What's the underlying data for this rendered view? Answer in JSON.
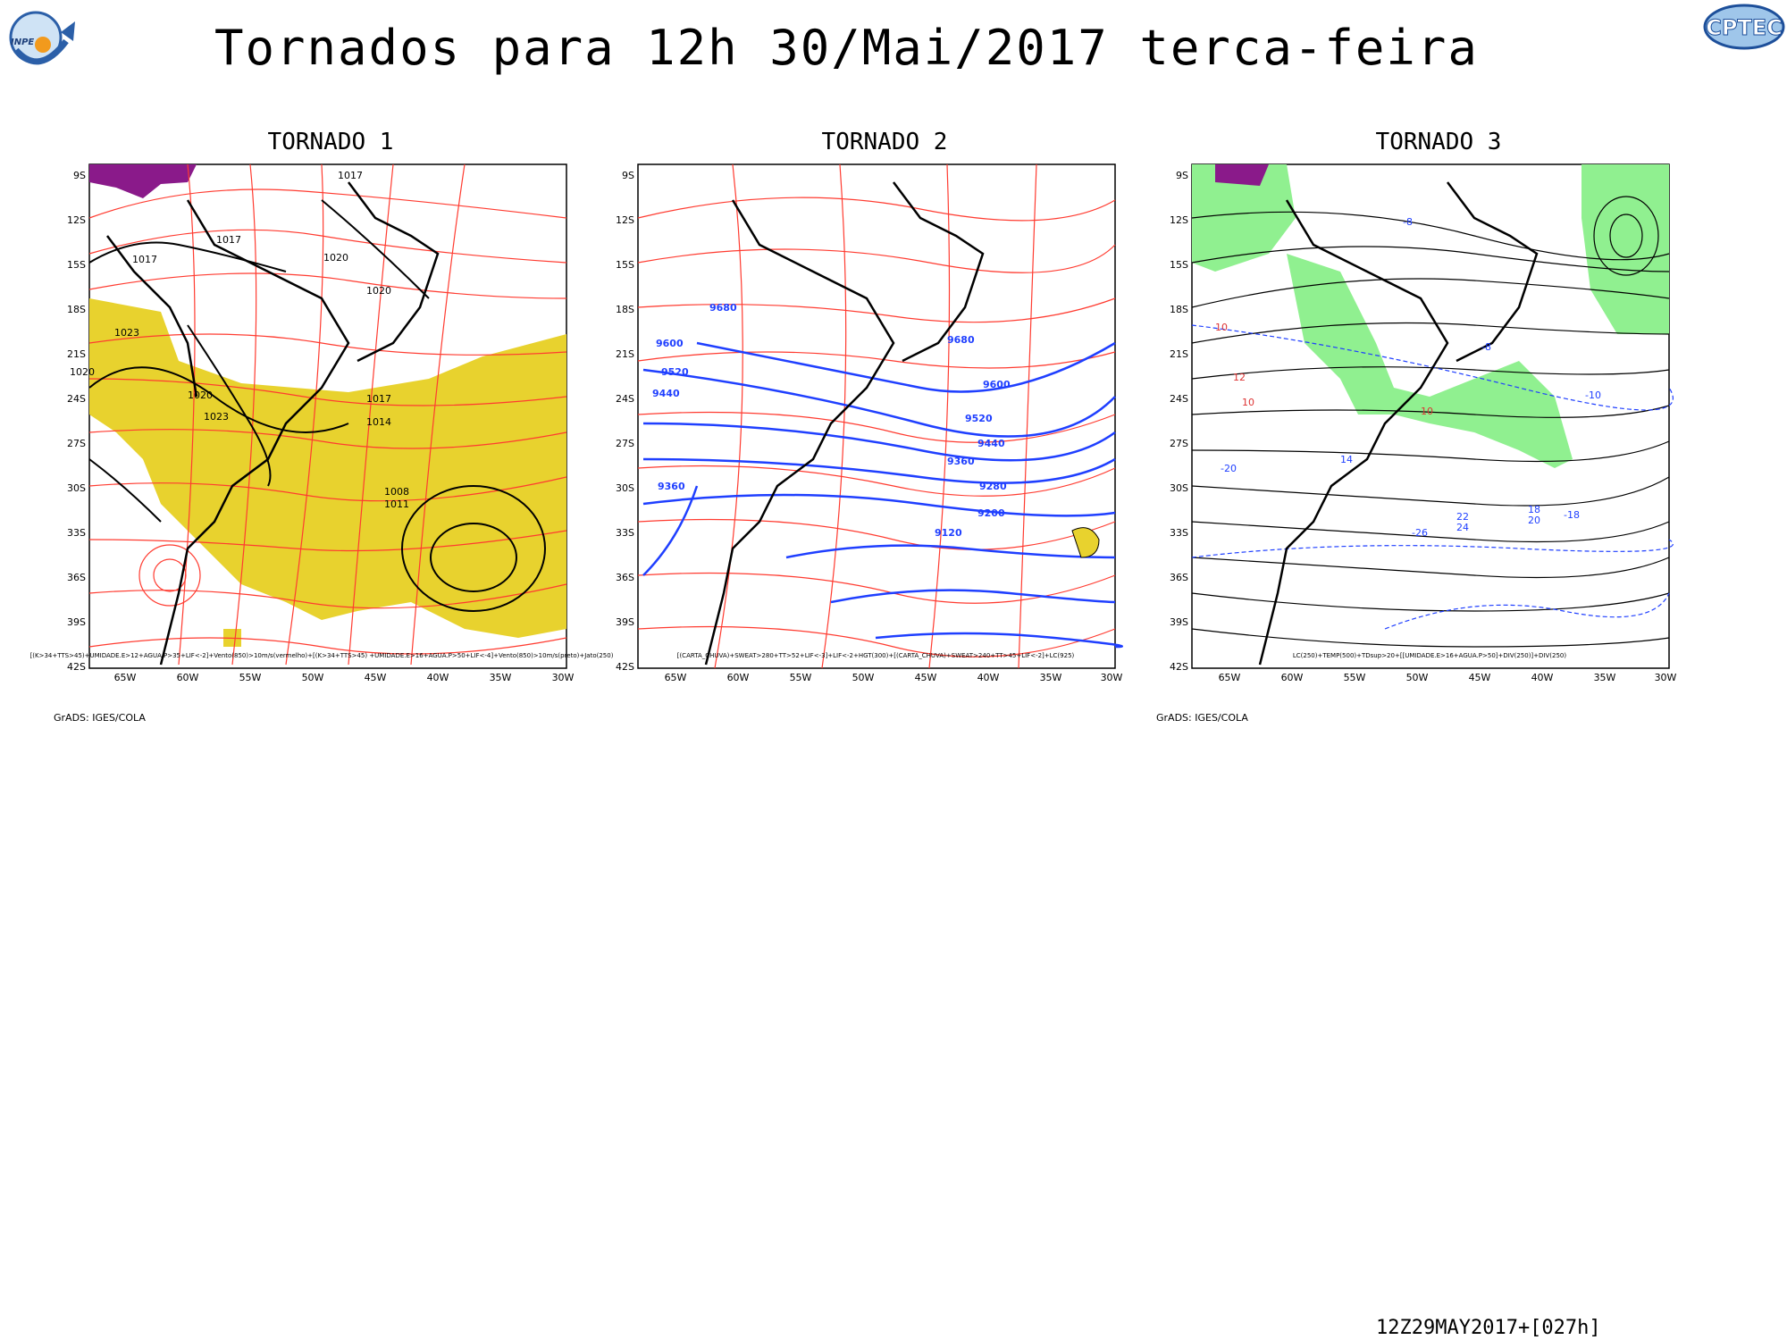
{
  "header": {
    "title": "Tornados  para 12h 30/Mai/2017 terca-feira",
    "logo_left": "INPE",
    "logo_right": "CPTEC"
  },
  "axes": {
    "lat_labels": [
      "9S",
      "12S",
      "15S",
      "18S",
      "21S",
      "24S",
      "27S",
      "30S",
      "33S",
      "36S",
      "39S",
      "42S"
    ],
    "lon_labels": [
      "65W",
      "60W",
      "55W",
      "50W",
      "45W",
      "40W",
      "35W",
      "30W"
    ]
  },
  "panels": [
    {
      "title": "TORNADO 1",
      "caption": "[(K>34+TTS>45)+UMIDADE.E>12+AGUA.P>35+LIF<-2]+Vento(850)>10m/s(vermelho)+[(K>34+TTS>45) +UMIDADE.E>16+AGUA.P>50+LIF<-4]+Vento(850)>10m/s(preto)+Jato(250)",
      "contour_labels": [
        "1017",
        "1017",
        "1017",
        "1020",
        "1020",
        "1023",
        "1020",
        "1023",
        "1020",
        "1017",
        "1014",
        "1008",
        "1011"
      ],
      "credit": "GrADS: IGES/COLA",
      "colors": {
        "fill": "#e8d22e",
        "streamline": "#ff3b30",
        "contour": "#000000"
      }
    },
    {
      "title": "TORNADO 2",
      "caption": "[(CARTA_CHUVA)+SWEAT>280+TT>52+LIF<-3]+LIF<-2+HGT(300)+[(CARTA_CHUVA)+SWEAT>240+TT>45+LIF<-2]+LC(925)",
      "contour_labels": [
        "9680",
        "9600",
        "9520",
        "9440",
        "9680",
        "9600",
        "9520",
        "9440",
        "9360",
        "9280",
        "9200",
        "9120",
        "9360"
      ],
      "credit": "",
      "colors": {
        "fill": "#e8d22e",
        "streamline": "#ff3b30",
        "contour": "#1f3fff"
      }
    },
    {
      "title": "TORNADO 3",
      "caption": "LC(250)+TEMP(500)+TDsup>20+[[UMIDADE.E>16+AGUA.P>50]+DIV(250)]+DIV(250)",
      "contour_labels": [
        "-8",
        "-8",
        "-10",
        "10",
        "12",
        "10",
        "10",
        "14",
        "-20",
        "18",
        "20",
        "22",
        "24",
        "-26",
        "-18"
      ],
      "credit": "GrADS: IGES/COLA",
      "colors": {
        "fill": "#90f090",
        "streamline": "#000000",
        "contour": "#1f3fff"
      }
    }
  ],
  "footer": {
    "timestamp": "12Z29MAY2017+[027h]"
  }
}
